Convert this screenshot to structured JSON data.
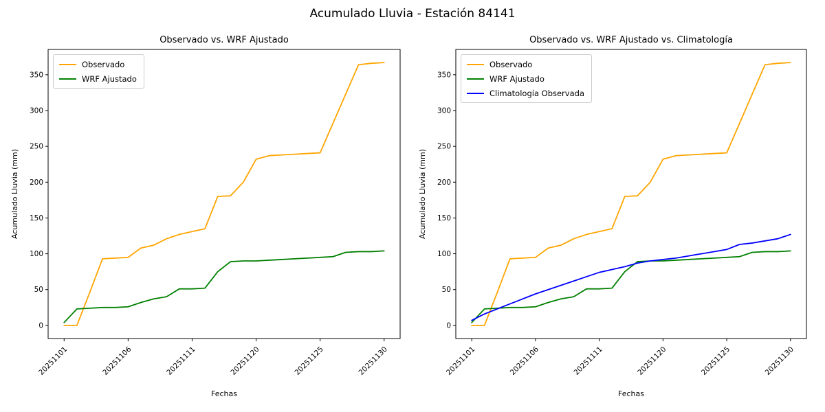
{
  "figure": {
    "title": "Acumulado Lluvia - Estación 84141"
  },
  "subplots": [
    {
      "title": "Observado vs. WRF Ajustado",
      "xlabel": "Fechas",
      "ylabel": "Acumulado Lluvia (mm)",
      "legend": [
        "Observado",
        "WRF Ajustado"
      ]
    },
    {
      "title": "Observado vs. WRF Ajustado vs. Climatología",
      "xlabel": "Fechas",
      "ylabel": "Acumulado Lluvia (mm)",
      "legend": [
        "Observado",
        "WRF Ajustado",
        "Climatología Observada"
      ]
    }
  ],
  "chart_data": {
    "type": "line",
    "title": "Acumulado Lluvia - Estación 84141",
    "xlabel": "Fechas",
    "ylabel": "Acumulado Lluvia (mm)",
    "grid": false,
    "legend_position": "upper left",
    "point_count": 26,
    "xlim": [
      -1.25,
      26.25
    ],
    "ylim": [
      -18.35,
      385.35
    ],
    "xticks": {
      "positions": [
        0,
        5,
        10,
        15,
        20,
        25
      ],
      "labels": [
        "20251101",
        "20251106",
        "20251111",
        "20251120",
        "20251125",
        "20251130"
      ]
    },
    "yticks": [
      0,
      50,
      100,
      150,
      200,
      250,
      300,
      350
    ],
    "series": [
      {
        "name": "Observado",
        "color": "#FFA500",
        "subplots": [
          0,
          1
        ],
        "values": [
          0,
          0,
          46,
          93,
          94,
          95,
          108,
          112,
          121,
          127,
          131,
          135,
          180,
          181,
          200,
          232,
          237,
          238,
          239,
          240,
          241,
          282,
          323,
          364,
          366,
          367
        ]
      },
      {
        "name": "WRF Ajustado",
        "color": "#008000",
        "subplots": [
          0,
          1
        ],
        "values": [
          4,
          23,
          24,
          25,
          25,
          26,
          32,
          37,
          40,
          51,
          51,
          52,
          75,
          89,
          90,
          90,
          91,
          92,
          93,
          94,
          95,
          96,
          102,
          103,
          103,
          104
        ]
      },
      {
        "name": "Climatología Observada",
        "color": "#0000FF",
        "subplots": [
          1
        ],
        "values": [
          7,
          16,
          23,
          30,
          37,
          44,
          50,
          56,
          62,
          68,
          74,
          78,
          82,
          87,
          90,
          92,
          94,
          97,
          100,
          103,
          106,
          113,
          115,
          118,
          121,
          127
        ]
      }
    ]
  }
}
